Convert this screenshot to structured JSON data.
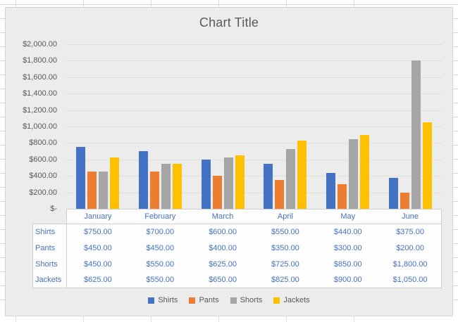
{
  "chart_data": {
    "type": "bar",
    "title": "Chart Title",
    "categories": [
      "January",
      "February",
      "March",
      "April",
      "May",
      "June"
    ],
    "series": [
      {
        "name": "Shirts",
        "color": "#4472C4",
        "values": [
          750,
          700,
          600,
          550,
          440,
          375
        ]
      },
      {
        "name": "Pants",
        "color": "#ED7D31",
        "values": [
          450,
          450,
          400,
          350,
          300,
          200
        ]
      },
      {
        "name": "Shorts",
        "color": "#A5A5A5",
        "values": [
          450,
          550,
          625,
          725,
          850,
          1800
        ]
      },
      {
        "name": "Jackets",
        "color": "#FFC000",
        "values": [
          625,
          550,
          650,
          825,
          900,
          1050
        ]
      }
    ],
    "ylim": [
      0,
      2000
    ],
    "grid": true,
    "legend_position": "bottom",
    "yticks": [
      {
        "value": 0,
        "label": "$-"
      },
      {
        "value": 200,
        "label": "$200.00"
      },
      {
        "value": 400,
        "label": "$400.00"
      },
      {
        "value": 600,
        "label": "$600.00"
      },
      {
        "value": 800,
        "label": "$800.00"
      },
      {
        "value": 1000,
        "label": "$1,000.00"
      },
      {
        "value": 1200,
        "label": "$1,200.00"
      },
      {
        "value": 1400,
        "label": "$1,400.00"
      },
      {
        "value": 1600,
        "label": "$1,600.00"
      },
      {
        "value": 1800,
        "label": "$1,800.00"
      },
      {
        "value": 2000,
        "label": "$2,000.00"
      }
    ],
    "data_table": {
      "row_headers": [
        "Shirts",
        "Pants",
        "Shorts",
        "Jackets"
      ],
      "cells": [
        [
          "$750.00",
          "$700.00",
          "$600.00",
          "$550.00",
          "$440.00",
          "$375.00"
        ],
        [
          "$450.00",
          "$450.00",
          "$400.00",
          "$350.00",
          "$300.00",
          "$200.00"
        ],
        [
          "$450.00",
          "$550.00",
          "$625.00",
          "$725.00",
          "$850.00",
          "$1,800.00"
        ],
        [
          "$625.00",
          "$550.00",
          "$650.00",
          "$825.00",
          "$900.00",
          "$1,050.00"
        ]
      ]
    }
  },
  "legend": {
    "items": [
      {
        "label": "Shirts",
        "color": "#4472C4"
      },
      {
        "label": "Pants",
        "color": "#ED7D31"
      },
      {
        "label": "Shorts",
        "color": "#A5A5A5"
      },
      {
        "label": "Jackets",
        "color": "#FFC000"
      }
    ]
  },
  "colors": {
    "chart_background": "#ECECEC",
    "chart_border": "#D4D4D4",
    "gridline": "#DFDFDF",
    "axis_text": "#595959",
    "table_text": "#4472C4",
    "table_border": "#CFCFCF",
    "table_background": "#FDFDFD",
    "sheet_gridline": "#D9D9D9"
  }
}
